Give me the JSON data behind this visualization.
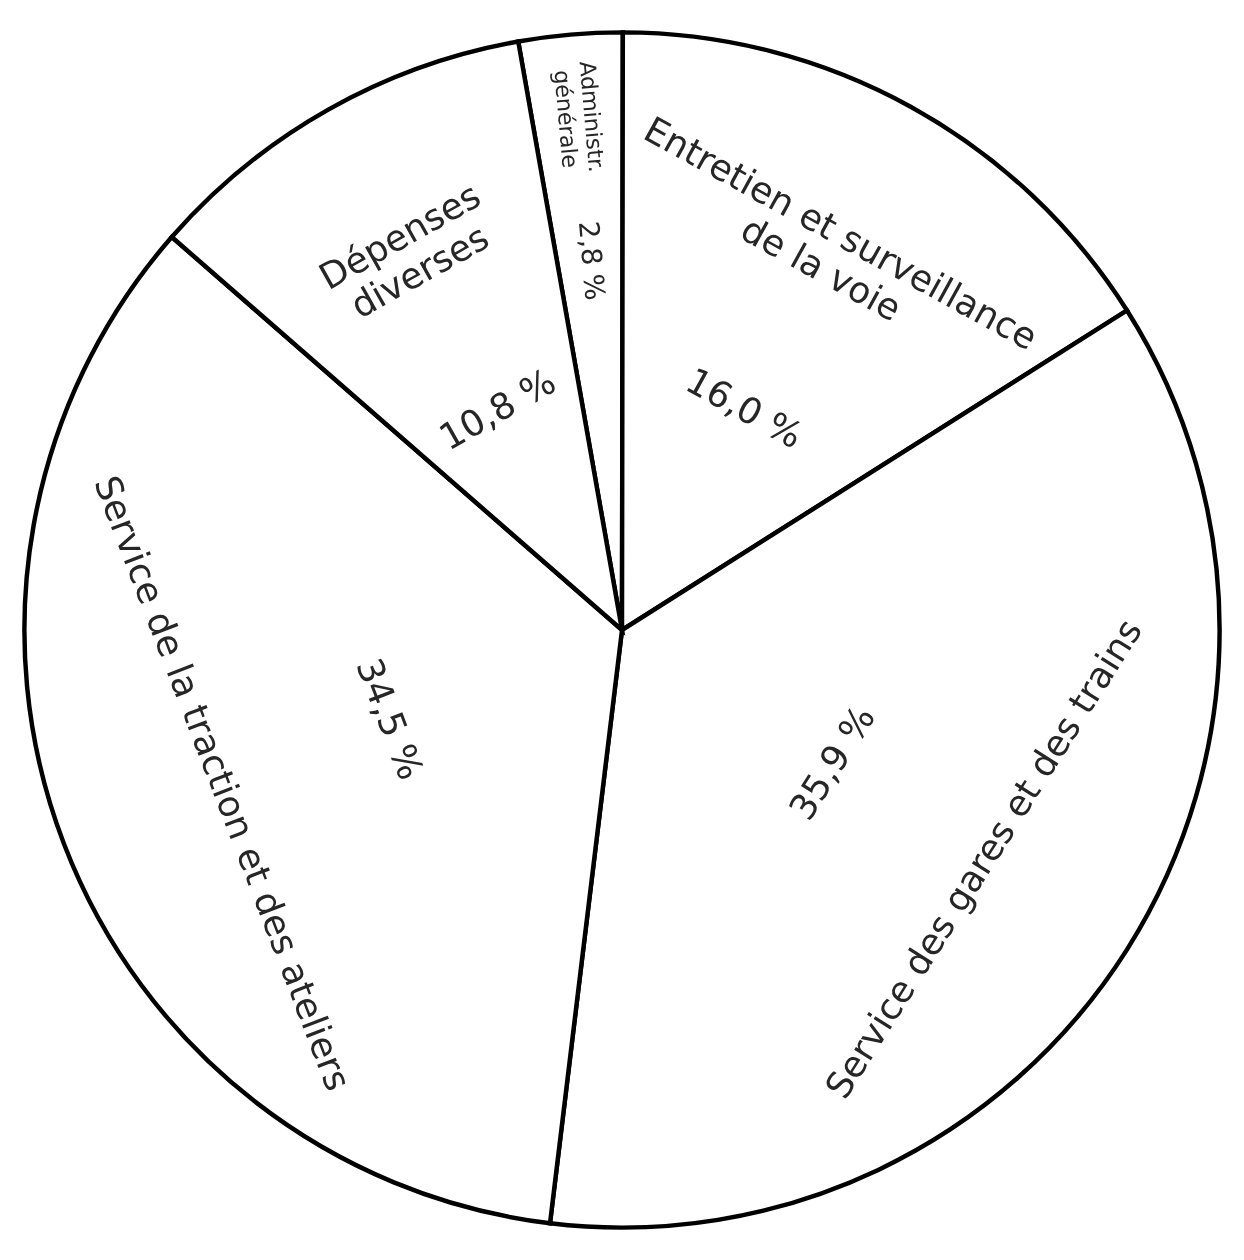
{
  "chart_data": {
    "type": "pie",
    "categories": [
      "Administr.\ngénérale",
      "Entretien et surveillance\nde la voie",
      "Service des gares et des trains",
      "Service de la traction et des ateliers",
      "Dépenses\ndiverses"
    ],
    "values": [
      2.8,
      16.0,
      35.9,
      34.5,
      10.8
    ],
    "value_labels": [
      "2,8 %",
      "16,0 %",
      "35,9 %",
      "34,5 %",
      "10,8 %"
    ],
    "colors": [
      "#ffffff",
      "#ffffff",
      "#ffffff",
      "#ffffff",
      "#ffffff"
    ]
  }
}
